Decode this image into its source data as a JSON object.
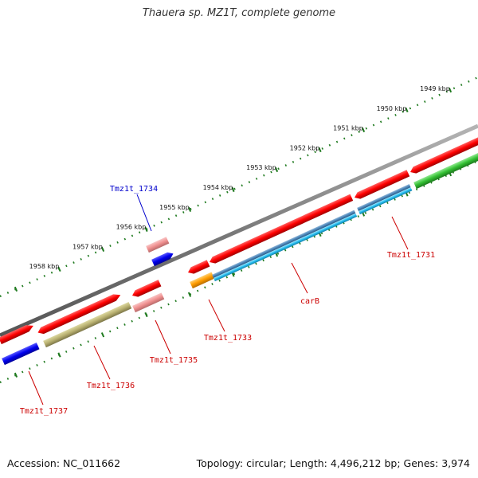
{
  "title": "Thauera sp. MZ1T, complete genome",
  "footer": {
    "accession": "Accession: NC_011662",
    "summary": "Topology: circular; Length: 4,496,212 bp; Genes: 3,974"
  },
  "colors": {
    "backbone": "#808080",
    "ticks": "#1f7a1f",
    "label_red": "#cc0000",
    "label_blue": "#0000cc",
    "leader": "#cc0000"
  },
  "kbp_labels": [
    "1949 kbp",
    "1950 kbp",
    "1951 kbp",
    "1952 kbp",
    "1953 kbp",
    "1954 kbp",
    "1955 kbp",
    "1956 kbp",
    "1957 kbp",
    "1958 kbp"
  ],
  "gene_labels": [
    {
      "id": "tmz1t-1734",
      "text": "Tmz1t_1734",
      "color": "blue"
    },
    {
      "id": "tmz1t-1731",
      "text": "Tmz1t_1731",
      "color": "red"
    },
    {
      "id": "carb",
      "text": "carB",
      "color": "red"
    },
    {
      "id": "tmz1t-1733",
      "text": "Tmz1t_1733",
      "color": "red"
    },
    {
      "id": "tmz1t-1735",
      "text": "Tmz1t_1735",
      "color": "red"
    },
    {
      "id": "tmz1t-1736",
      "text": "Tmz1t_1736",
      "color": "red"
    },
    {
      "id": "tmz1t-1737",
      "text": "Tmz1t_1737",
      "color": "red"
    }
  ]
}
